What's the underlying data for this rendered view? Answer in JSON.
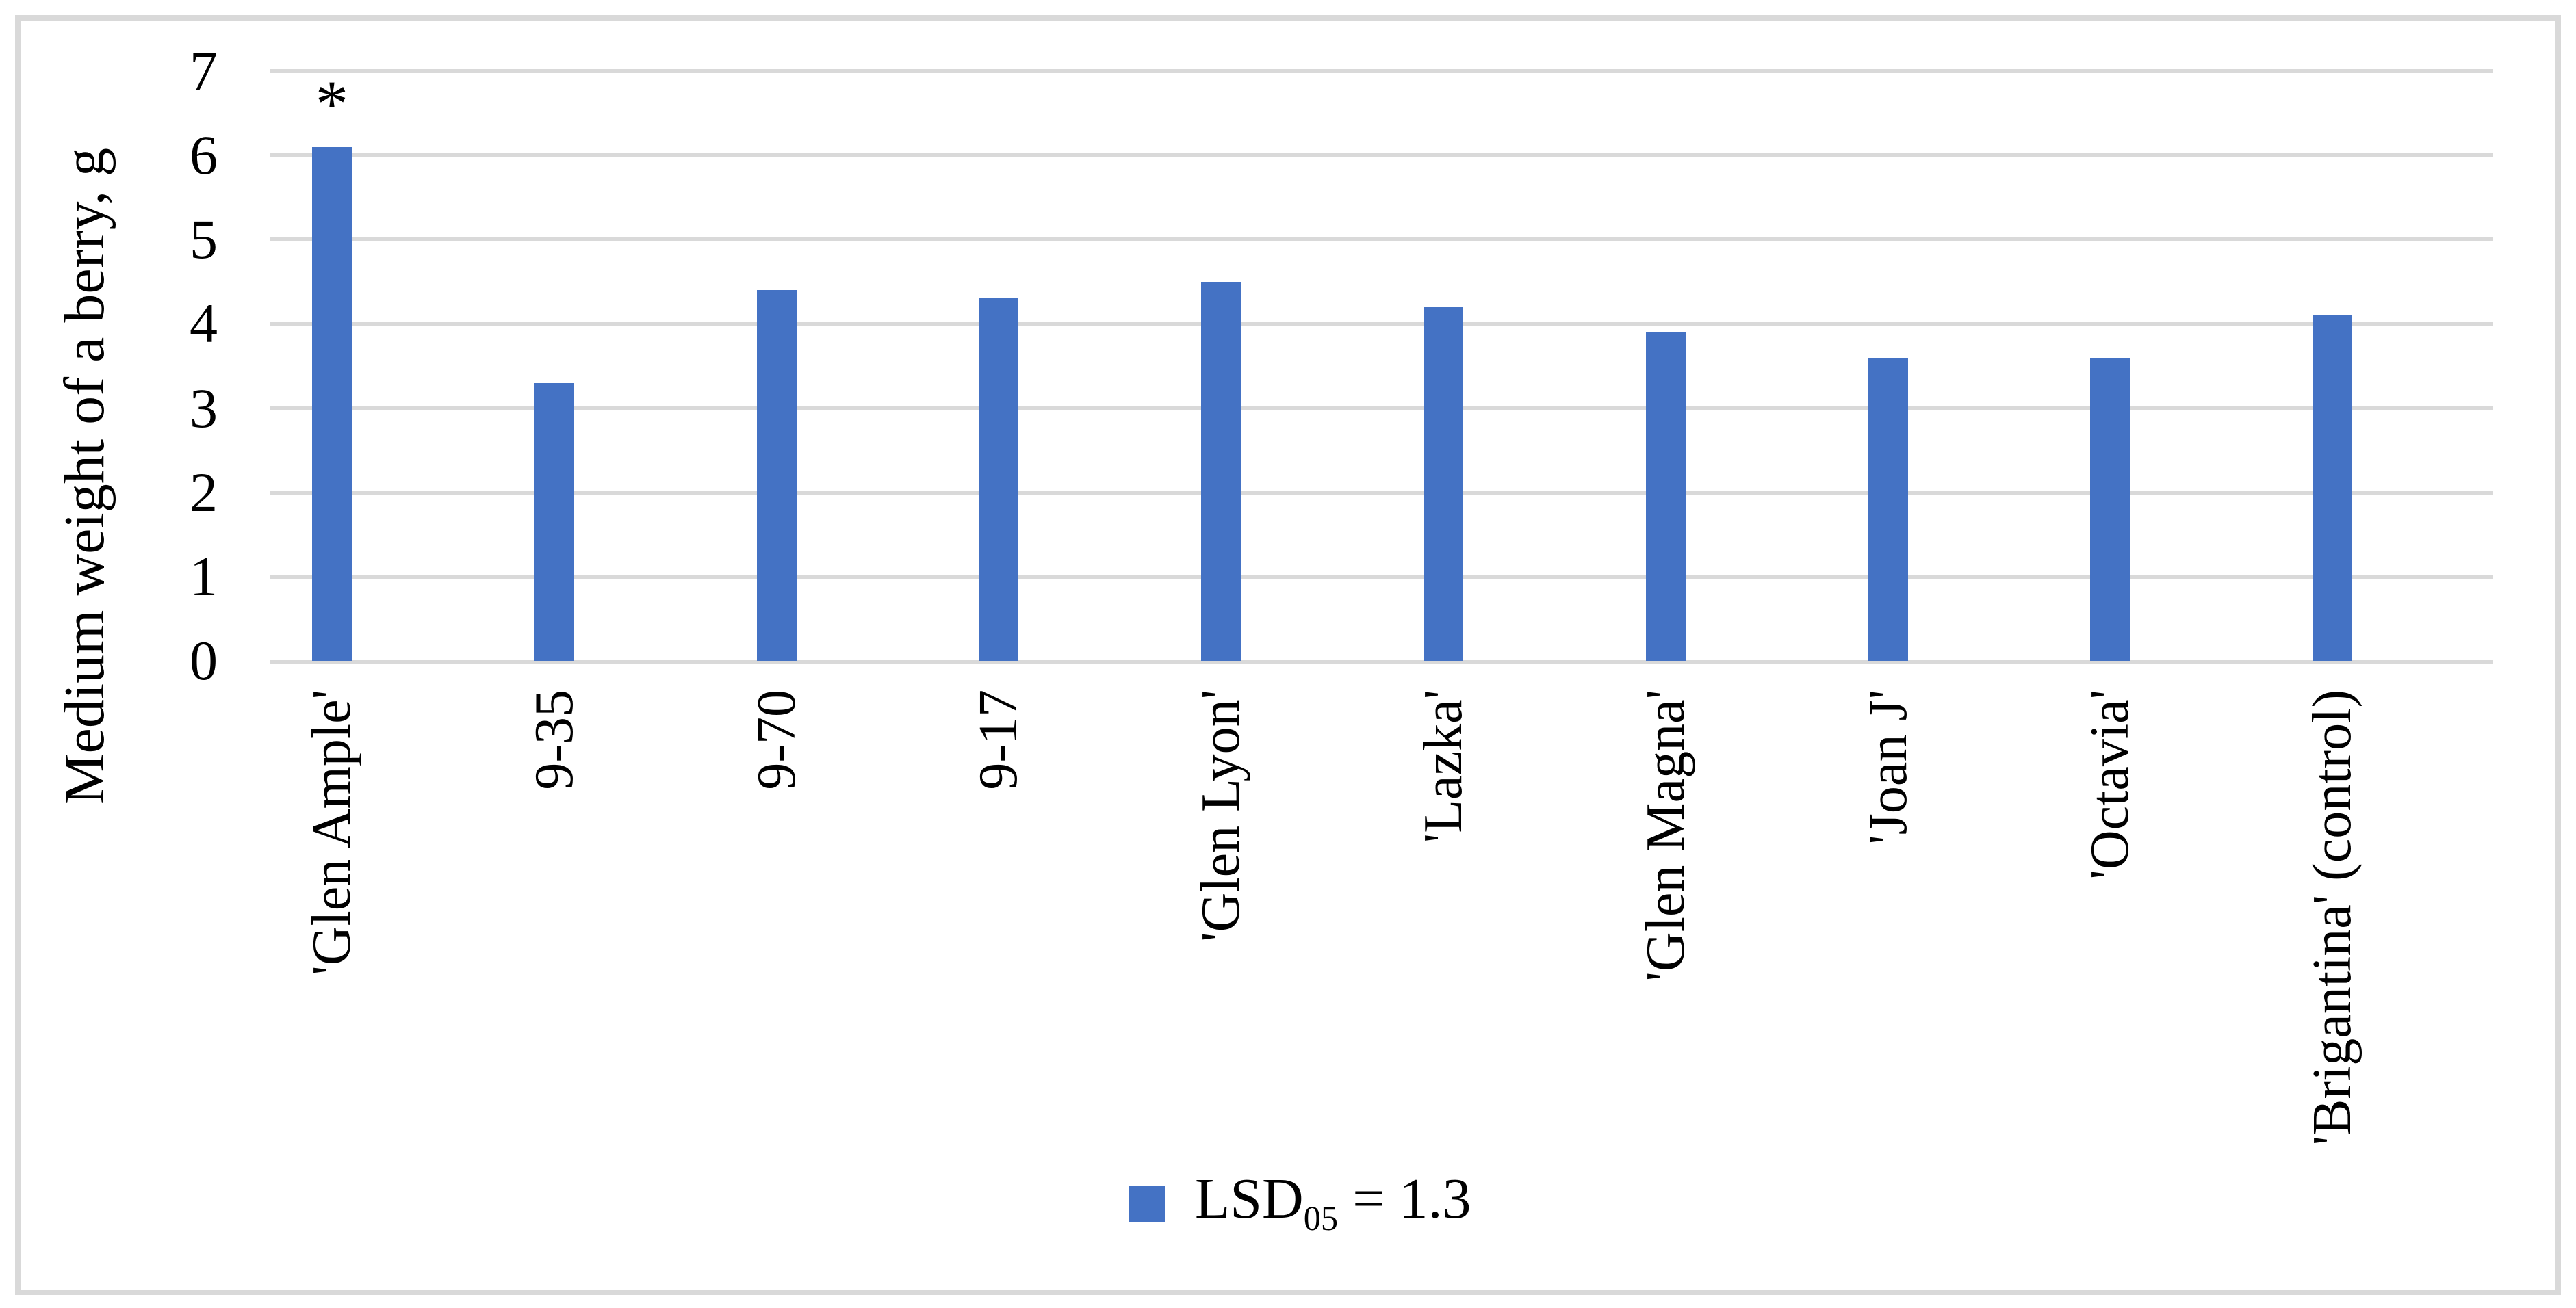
{
  "figure": {
    "background_color": "#ffffff",
    "border_color": "#d9d9d9"
  },
  "chart_data": {
    "type": "bar",
    "title": "",
    "categories": [
      "'Glen Ample'",
      "9-35",
      "9-70",
      "9-17",
      "'Glen Lyon'",
      "'Lazka'",
      "'Glen Magna'",
      "'Joan J'",
      "'Octavia'",
      "'Brigantina' (control)"
    ],
    "values": [
      6.1,
      3.3,
      4.4,
      4.3,
      4.5,
      4.2,
      3.9,
      3.6,
      3.6,
      4.1
    ],
    "xlabel": "",
    "ylabel": "Medium weight of a berry, g",
    "ylim": [
      0,
      7
    ],
    "yticks": [
      0,
      1,
      2,
      3,
      4,
      5,
      6,
      7
    ],
    "grid": true,
    "gridline_color": "#d9d9d9",
    "bar_color": "#4472c4",
    "annotations": [
      {
        "category_index": 0,
        "text": "*"
      }
    ],
    "legend": {
      "position": "bottom-center",
      "marker_color": "#4472c4",
      "label_prefix": "LSD",
      "label_subscript": "05",
      "label_suffix": " = 1.3",
      "label_plain": "LSD05 = 1.3"
    }
  }
}
